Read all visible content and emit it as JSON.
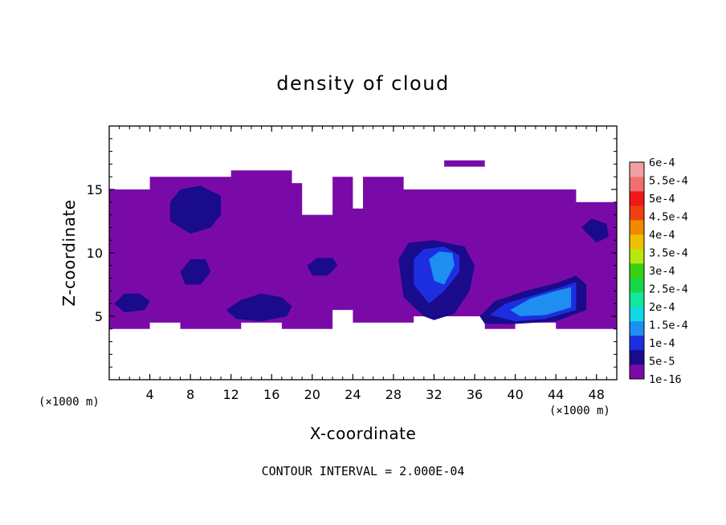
{
  "chart_data": {
    "type": "heatmap",
    "title": "density of cloud",
    "xlabel": "X-coordinate",
    "ylabel": "Z-coordinate",
    "x_unit": "(×1000 m)",
    "footer": "CONTOUR INTERVAL = 2.000E-04",
    "xlim": [
      0,
      50
    ],
    "ylim": [
      0,
      20
    ],
    "x_ticks": [
      4,
      8,
      12,
      16,
      20,
      24,
      28,
      32,
      36,
      40,
      44,
      48
    ],
    "y_ticks": [
      5,
      10,
      15
    ],
    "colorbar": {
      "labels": [
        "1e-16",
        "5e-5",
        "1e-4",
        "1.5e-4",
        "2e-4",
        "2.5e-4",
        "3e-4",
        "3.5e-4",
        "4e-4",
        "4.5e-4",
        "5e-4",
        "5.5e-4",
        "6e-4"
      ],
      "colors": [
        "#7a0aa8",
        "#1a0a8c",
        "#1c2ee0",
        "#1e8ef0",
        "#12d8e6",
        "#12e89a",
        "#16d64a",
        "#3cd012",
        "#b8e810",
        "#f0c000",
        "#f08a00",
        "#f04010",
        "#f01818",
        "#f07070",
        "#f0a0a0"
      ]
    },
    "regions": [
      {
        "level": 0,
        "x": [
          0,
          0,
          4,
          4,
          12,
          12,
          18,
          18,
          19,
          19,
          22,
          22,
          24,
          24,
          25,
          25,
          29,
          29,
          31,
          31,
          37,
          37,
          46,
          46,
          50,
          50,
          44,
          44,
          40,
          40,
          37,
          37,
          30,
          30,
          24,
          24,
          22,
          22,
          17,
          17,
          13,
          13,
          7,
          7,
          4,
          4,
          0
        ],
        "y": [
          4,
          15,
          15,
          16,
          16,
          16.5,
          16.5,
          15.5,
          15.5,
          13,
          13,
          16,
          16,
          13.5,
          13.5,
          16,
          16,
          15,
          15,
          15,
          15,
          15,
          15,
          14,
          14,
          4,
          4,
          4.5,
          4.5,
          4,
          4,
          5,
          5,
          4.5,
          4.5,
          5.5,
          5.5,
          4,
          4,
          4.5,
          4.5,
          4,
          4,
          4.5,
          4.5,
          4,
          4
        ]
      },
      {
        "level": 0,
        "x": [
          33,
          33,
          37,
          37,
          33
        ],
        "y": [
          16.8,
          17.3,
          17.3,
          16.8,
          16.8
        ]
      },
      {
        "level": 1,
        "x": [
          6,
          7,
          9,
          11,
          11,
          10,
          8,
          6,
          6
        ],
        "y": [
          14,
          15,
          15.3,
          14.5,
          13,
          12,
          11.5,
          12.5,
          14
        ]
      },
      {
        "level": 1,
        "x": [
          7,
          8,
          9.5,
          10,
          9,
          7.5,
          7
        ],
        "y": [
          8.5,
          9.5,
          9.5,
          8.5,
          7.5,
          7.5,
          8.5
        ]
      },
      {
        "level": 1,
        "x": [
          0.5,
          1.5,
          3,
          4,
          3.5,
          1.5,
          0.5
        ],
        "y": [
          6,
          6.8,
          6.8,
          6.2,
          5.5,
          5.3,
          6
        ]
      },
      {
        "level": 1,
        "x": [
          11.5,
          13,
          15,
          17,
          18,
          17.5,
          15,
          12.5,
          11.5
        ],
        "y": [
          5.5,
          6.3,
          6.8,
          6.5,
          5.8,
          5,
          4.6,
          4.8,
          5.5
        ]
      },
      {
        "level": 1,
        "x": [
          19.5,
          20.5,
          22,
          22.5,
          21.5,
          20,
          19.5
        ],
        "y": [
          9,
          9.6,
          9.6,
          9,
          8.2,
          8.2,
          9
        ]
      },
      {
        "level": 1,
        "x": [
          28.5,
          29.5,
          32,
          35,
          36,
          35.5,
          34,
          32,
          31,
          29,
          28.5
        ],
        "y": [
          9.5,
          10.8,
          11,
          10.5,
          9,
          7,
          5.2,
          4.7,
          5,
          6.5,
          9.5
        ]
      },
      {
        "level": 1,
        "x": [
          36.5,
          38,
          41,
          44,
          46,
          47,
          47,
          44,
          40,
          37,
          36.5
        ],
        "y": [
          5,
          6.2,
          7,
          7.6,
          8.2,
          7.5,
          5.5,
          4.6,
          4.4,
          4.4,
          5
        ]
      },
      {
        "level": 1,
        "x": [
          46.5,
          47.5,
          49,
          49.2,
          48,
          46.5
        ],
        "y": [
          12,
          12.7,
          12.3,
          11.3,
          10.8,
          12
        ]
      },
      {
        "level": 2,
        "x": [
          30,
          31,
          33,
          34.5,
          34.5,
          33,
          31.5,
          30,
          30
        ],
        "y": [
          9.5,
          10.3,
          10.5,
          9.8,
          8.5,
          7,
          6,
          7.5,
          9.5
        ]
      },
      {
        "level": 2,
        "x": [
          37.5,
          39,
          42,
          44.5,
          46,
          46,
          43,
          40,
          37.5
        ],
        "y": [
          5.1,
          6,
          6.7,
          7.3,
          7.7,
          5.5,
          4.8,
          4.6,
          5.1
        ]
      },
      {
        "level": 3,
        "x": [
          31.5,
          32.5,
          33.8,
          34,
          33,
          32,
          31.5
        ],
        "y": [
          9.5,
          10.1,
          10,
          9,
          7.5,
          7.8,
          9.5
        ]
      },
      {
        "level": 3,
        "x": [
          39.5,
          41.5,
          44,
          45.5,
          45.5,
          43,
          40.5,
          39.5
        ],
        "y": [
          5.5,
          6.4,
          7,
          7.3,
          5.7,
          5.1,
          5,
          5.5
        ]
      }
    ]
  }
}
